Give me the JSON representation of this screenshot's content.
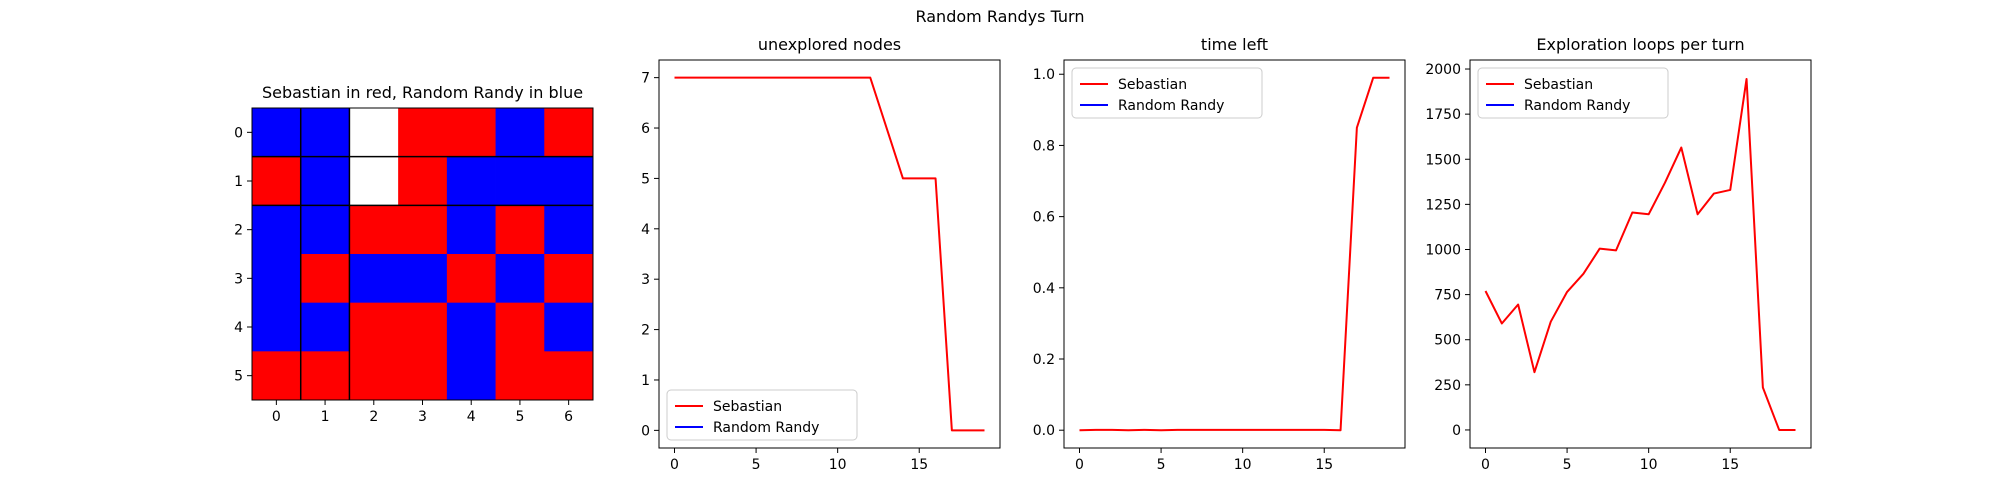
{
  "figure": {
    "suptitle": "Random Randys Turn",
    "colors": {
      "Sebastian": "#ff0000",
      "Random Randy": "#0000ff",
      "empty": "#ffffff"
    }
  },
  "chart_data": [
    {
      "type": "heatmap",
      "title": "Sebastian in red, Random Randy in blue",
      "xticks": [
        0,
        1,
        2,
        3,
        4,
        5,
        6
      ],
      "yticks": [
        0,
        1,
        2,
        3,
        4,
        5
      ],
      "cells": [
        [
          "B",
          "B",
          "W",
          "R",
          "R",
          "B",
          "R"
        ],
        [
          "R",
          "B",
          "W",
          "R",
          "B",
          "B",
          "B"
        ],
        [
          "B",
          "B",
          "R",
          "R",
          "B",
          "R",
          "B"
        ],
        [
          "B",
          "R",
          "B",
          "B",
          "R",
          "B",
          "R"
        ],
        [
          "B",
          "B",
          "R",
          "R",
          "B",
          "R",
          "B"
        ],
        [
          "R",
          "R",
          "R",
          "R",
          "B",
          "R",
          "R"
        ]
      ],
      "cell_key": {
        "R": "Sebastian",
        "B": "Random Randy",
        "W": "empty"
      }
    },
    {
      "type": "line",
      "title": "unexplored nodes",
      "xlim": [
        -0.95,
        19.95
      ],
      "ylim": [
        -0.35,
        7.35
      ],
      "xticks": [
        0,
        5,
        10,
        15
      ],
      "yticks": [
        0,
        1,
        2,
        3,
        4,
        5,
        6,
        7
      ],
      "legend": "lower-left",
      "series": [
        {
          "name": "Sebastian",
          "color": "#ff0000",
          "x": [
            0,
            1,
            2,
            3,
            4,
            5,
            6,
            7,
            8,
            9,
            10,
            11,
            12,
            13,
            14,
            15,
            16,
            17,
            18,
            19
          ],
          "y": [
            7,
            7,
            7,
            7,
            7,
            7,
            7,
            7,
            7,
            7,
            7,
            7,
            7,
            6,
            5,
            5,
            5,
            0,
            0,
            0
          ]
        },
        {
          "name": "Random Randy",
          "color": "#0000ff",
          "x": [],
          "y": []
        }
      ]
    },
    {
      "type": "line",
      "title": "time left",
      "xlim": [
        -0.95,
        19.95
      ],
      "ylim": [
        -0.05,
        1.04
      ],
      "xticks": [
        0,
        5,
        10,
        15
      ],
      "yticks": [
        0.0,
        0.2,
        0.4,
        0.6,
        0.8,
        1.0
      ],
      "ytick_labels": [
        "0.0",
        "0.2",
        "0.4",
        "0.6",
        "0.8",
        "1.0"
      ],
      "legend": "top-left",
      "series": [
        {
          "name": "Sebastian",
          "color": "#ff0000",
          "x": [
            0,
            1,
            2,
            3,
            4,
            5,
            6,
            7,
            8,
            9,
            10,
            11,
            12,
            13,
            14,
            15,
            16,
            17,
            18,
            19
          ],
          "y": [
            0.0,
            0.001,
            0.001,
            0.0,
            0.001,
            0.0,
            0.001,
            0.001,
            0.001,
            0.001,
            0.001,
            0.001,
            0.001,
            0.001,
            0.001,
            0.001,
            0.0,
            0.85,
            0.99,
            0.99
          ]
        },
        {
          "name": "Random Randy",
          "color": "#0000ff",
          "x": [],
          "y": []
        }
      ]
    },
    {
      "type": "line",
      "title": "Exploration loops per turn",
      "xlim": [
        -0.95,
        19.95
      ],
      "ylim": [
        -100,
        2050
      ],
      "xticks": [
        0,
        5,
        10,
        15
      ],
      "yticks": [
        0,
        250,
        500,
        750,
        1000,
        1250,
        1500,
        1750,
        2000
      ],
      "legend": "top-left",
      "series": [
        {
          "name": "Sebastian",
          "color": "#ff0000",
          "x": [
            0,
            1,
            2,
            3,
            4,
            5,
            6,
            7,
            8,
            9,
            10,
            11,
            12,
            13,
            14,
            15,
            16,
            17,
            18,
            19
          ],
          "y": [
            770,
            590,
            695,
            320,
            600,
            765,
            865,
            1005,
            995,
            1205,
            1195,
            1370,
            1565,
            1195,
            1310,
            1330,
            1945,
            235,
            0,
            0
          ]
        },
        {
          "name": "Random Randy",
          "color": "#0000ff",
          "x": [],
          "y": []
        }
      ]
    }
  ]
}
